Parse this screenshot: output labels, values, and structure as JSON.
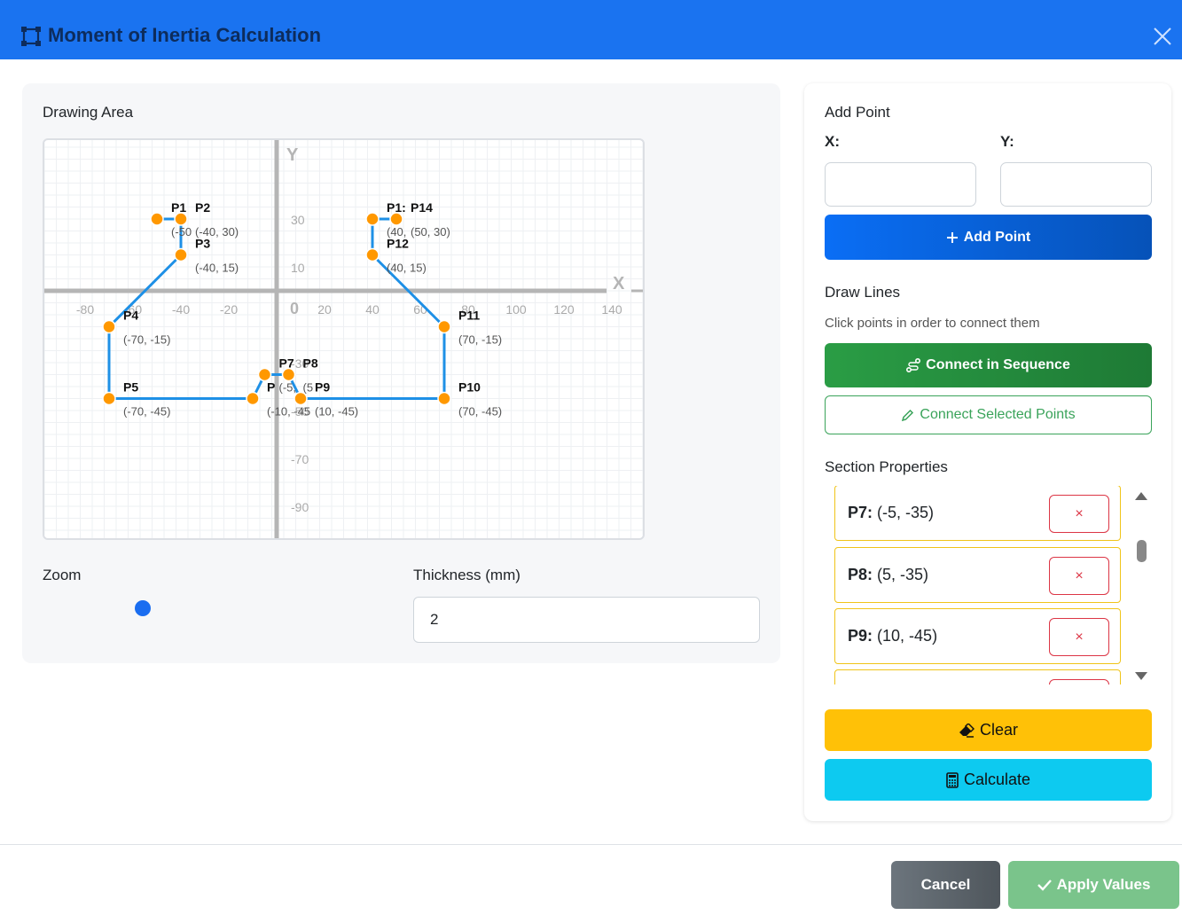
{
  "header": {
    "title": "Moment of Inertia Calculation",
    "title_icon": "vector-square-icon",
    "close_icon": "close-icon",
    "bg_color": "#1a73f0"
  },
  "drawing": {
    "label": "Drawing Area",
    "axis_x_label": "X",
    "axis_y_label": "Y",
    "origin_label": "0",
    "x_ticks": [
      "-80",
      "-60",
      "-40",
      "-20",
      "20",
      "40",
      "60",
      "80",
      "100",
      "120",
      "140"
    ],
    "y_ticks": [
      "30",
      "10",
      "-30",
      "-50",
      "-70",
      "-90"
    ],
    "points": [
      {
        "name": "P1",
        "x": -50,
        "y": 30,
        "coord": "(-50"
      },
      {
        "name": "P2",
        "x": -40,
        "y": 30,
        "coord": "(-40, 30)"
      },
      {
        "name": "P3",
        "x": -40,
        "y": 15,
        "coord": "(-40, 15)"
      },
      {
        "name": "P4",
        "x": -70,
        "y": -15,
        "coord": "(-70, -15)"
      },
      {
        "name": "P5",
        "x": -70,
        "y": -45,
        "coord": "(-70, -45)"
      },
      {
        "name": "P",
        "x": -10,
        "y": -45,
        "coord": "(-10, -45"
      },
      {
        "name": "P7",
        "x": -5,
        "y": -35,
        "coord": "(-5,"
      },
      {
        "name": "P8",
        "x": 5,
        "y": -35,
        "coord": "(5"
      },
      {
        "name": "P9",
        "x": 10,
        "y": -45,
        "coord": "(10, -45)"
      },
      {
        "name": "P10",
        "x": 70,
        "y": -45,
        "coord": "(70, -45)"
      },
      {
        "name": "P11",
        "x": 70,
        "y": -15,
        "coord": "(70, -15)"
      },
      {
        "name": "P12",
        "x": 40,
        "y": 15,
        "coord": "(40, 15)"
      },
      {
        "name": "P1:",
        "x": 40,
        "y": 30,
        "coord": "(40,"
      },
      {
        "name": "P14",
        "x": 50,
        "y": 30,
        "coord": "(50, 30)"
      }
    ],
    "lines": [
      [
        -50,
        30,
        -40,
        30
      ],
      [
        -40,
        30,
        -40,
        15
      ],
      [
        -40,
        15,
        -70,
        -15
      ],
      [
        -70,
        -15,
        -70,
        -45
      ],
      [
        -70,
        -45,
        -10,
        -45
      ],
      [
        -10,
        -45,
        -5,
        -35
      ],
      [
        -5,
        -35,
        5,
        -35
      ],
      [
        5,
        -35,
        10,
        -45
      ],
      [
        10,
        -45,
        70,
        -45
      ],
      [
        70,
        -45,
        70,
        -15
      ],
      [
        70,
        -15,
        40,
        15
      ],
      [
        40,
        15,
        40,
        30
      ],
      [
        40,
        30,
        50,
        30
      ]
    ],
    "line_color": "#1e90e6",
    "point_color": "#ff9800"
  },
  "zoom": {
    "label": "Zoom",
    "value": 0.4
  },
  "thickness": {
    "label": "Thickness (mm)",
    "value": "2"
  },
  "add_point": {
    "title": "Add Point",
    "x_label": "X:",
    "y_label": "Y:",
    "button": "Add Point",
    "button_icon": "plus-icon"
  },
  "draw_lines": {
    "title": "Draw Lines",
    "hint": "Click points in order to connect them",
    "connect_sequence": "Connect in Sequence",
    "connect_selected": "Connect Selected Points"
  },
  "section_properties": {
    "title": "Section Properties",
    "items": [
      {
        "name": "P7:",
        "coord": "(-5, -35)",
        "delete": "×"
      },
      {
        "name": "P8:",
        "coord": "(5, -35)",
        "delete": "×"
      },
      {
        "name": "P9:",
        "coord": "(10, -45)",
        "delete": "×"
      }
    ]
  },
  "actions": {
    "clear": "Clear",
    "calculate": "Calculate"
  },
  "footer": {
    "cancel": "Cancel",
    "apply": "Apply Values"
  }
}
